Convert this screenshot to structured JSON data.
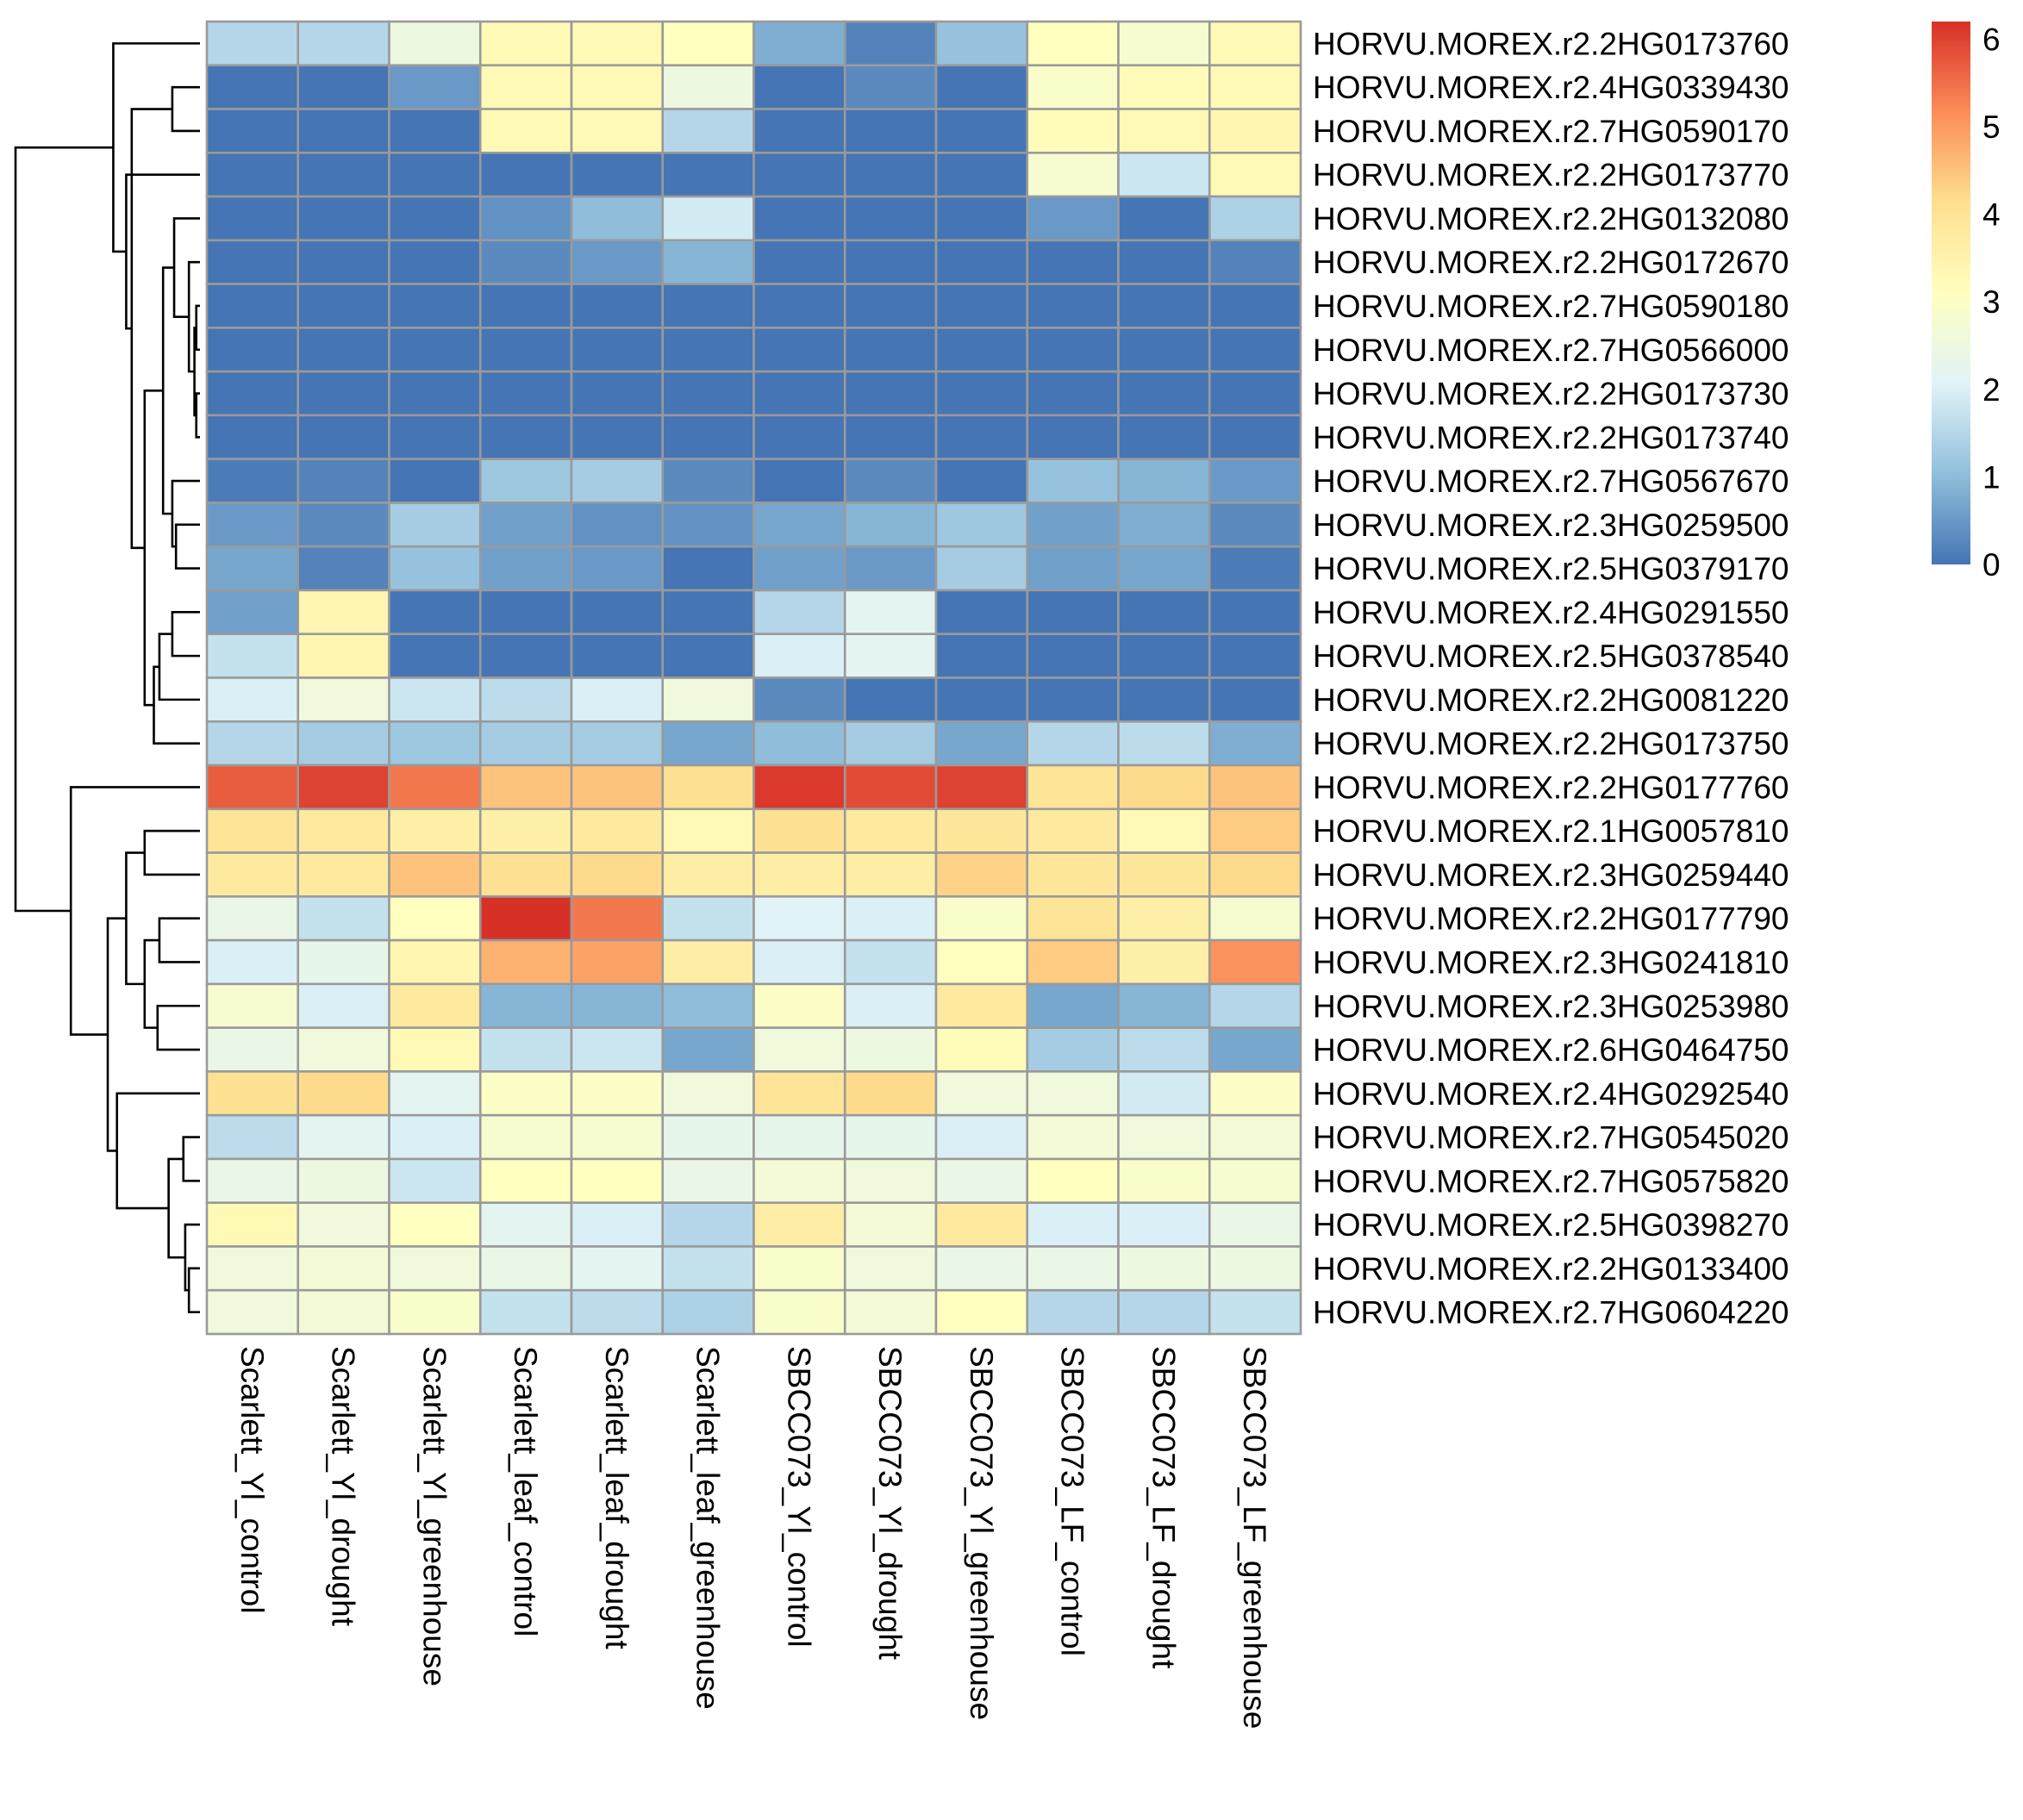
{
  "chart_data": {
    "type": "heatmap",
    "title": "",
    "xlabel": "",
    "ylabel": "",
    "columns": [
      "Scarlett_Yl_control",
      "Scarlett_Yl_drought",
      "Scarlett_Yl_greenhouse",
      "Scarlett_leaf_control",
      "Scarlett_leaf_drought",
      "Scarlett_leaf_greenhouse",
      "SBCC073_Yl_control",
      "SBCC073_Yl_drought",
      "SBCC073_Yl_greenhouse",
      "SBCC073_LF_control",
      "SBCC073_LF_drought",
      "SBCC073_LF_greenhouse"
    ],
    "rows": [
      "HORVU.MOREX.r2.2HG0173760",
      "HORVU.MOREX.r2.4HG0339430",
      "HORVU.MOREX.r2.7HG0590170",
      "HORVU.MOREX.r2.2HG0173770",
      "HORVU.MOREX.r2.2HG0132080",
      "HORVU.MOREX.r2.2HG0172670",
      "HORVU.MOREX.r2.7HG0590180",
      "HORVU.MOREX.r2.7HG0566000",
      "HORVU.MOREX.r2.2HG0173730",
      "HORVU.MOREX.r2.2HG0173740",
      "HORVU.MOREX.r2.7HG0567670",
      "HORVU.MOREX.r2.3HG0259500",
      "HORVU.MOREX.r2.5HG0379170",
      "HORVU.MOREX.r2.4HG0291550",
      "HORVU.MOREX.r2.5HG0378540",
      "HORVU.MOREX.r2.2HG0081220",
      "HORVU.MOREX.r2.2HG0173750",
      "HORVU.MOREX.r2.2HG0177760",
      "HORVU.MOREX.r2.1HG0057810",
      "HORVU.MOREX.r2.3HG0259440",
      "HORVU.MOREX.r2.2HG0177790",
      "HORVU.MOREX.r2.3HG0241810",
      "HORVU.MOREX.r2.3HG0253980",
      "HORVU.MOREX.r2.6HG0464750",
      "HORVU.MOREX.r2.4HG0292540",
      "HORVU.MOREX.r2.7HG0545020",
      "HORVU.MOREX.r2.7HG0575820",
      "HORVU.MOREX.r2.5HG0398270",
      "HORVU.MOREX.r2.2HG0133400",
      "HORVU.MOREX.r2.7HG0604220"
    ],
    "values": [
      [
        1.5,
        1.5,
        2.5,
        3.3,
        3.3,
        3.1,
        0.8,
        0.2,
        1.1,
        3.1,
        2.8,
        3.3
      ],
      [
        0.0,
        0.0,
        0.5,
        3.3,
        3.3,
        2.5,
        0.0,
        0.3,
        0.0,
        2.9,
        3.2,
        3.3
      ],
      [
        0.0,
        0.0,
        0.0,
        3.3,
        3.3,
        1.5,
        0.0,
        0.0,
        0.0,
        3.2,
        3.3,
        3.4
      ],
      [
        0.0,
        0.0,
        0.0,
        0.0,
        0.0,
        0.0,
        0.0,
        0.0,
        0.0,
        2.8,
        1.8,
        3.3
      ],
      [
        0.0,
        0.0,
        0.0,
        0.4,
        1.0,
        1.9,
        0.0,
        0.0,
        0.0,
        0.5,
        0.0,
        1.4
      ],
      [
        0.0,
        0.0,
        0.0,
        0.3,
        0.5,
        0.9,
        0.0,
        0.0,
        0.0,
        0.0,
        0.0,
        0.2
      ],
      [
        0.0,
        0.0,
        0.0,
        0.0,
        0.0,
        0.0,
        0.0,
        0.0,
        0.0,
        0.0,
        0.0,
        0.0
      ],
      [
        0.0,
        0.0,
        0.0,
        0.0,
        0.0,
        0.0,
        0.0,
        0.0,
        0.0,
        0.0,
        0.0,
        0.0
      ],
      [
        0.0,
        0.0,
        0.0,
        0.0,
        0.0,
        0.0,
        0.0,
        0.0,
        0.0,
        0.0,
        0.0,
        0.0
      ],
      [
        0.0,
        0.0,
        0.0,
        0.0,
        0.0,
        0.0,
        0.0,
        0.0,
        0.0,
        0.0,
        0.0,
        0.0
      ],
      [
        0.1,
        0.2,
        0.0,
        1.2,
        1.3,
        0.3,
        0.0,
        0.3,
        0.0,
        1.1,
        0.9,
        0.5
      ],
      [
        0.5,
        0.3,
        1.3,
        0.6,
        0.4,
        0.4,
        0.7,
        0.9,
        1.2,
        0.6,
        0.8,
        0.3
      ],
      [
        0.7,
        0.2,
        1.1,
        0.6,
        0.5,
        0.0,
        0.6,
        0.5,
        1.3,
        0.6,
        0.7,
        0.1
      ],
      [
        0.6,
        3.4,
        0.0,
        0.0,
        0.0,
        0.0,
        1.5,
        2.2,
        0.0,
        0.0,
        0.0,
        0.0
      ],
      [
        1.7,
        3.4,
        0.0,
        0.0,
        0.0,
        0.0,
        2.0,
        2.2,
        0.0,
        0.0,
        0.0,
        0.0
      ],
      [
        2.0,
        2.6,
        1.8,
        1.6,
        2.0,
        2.6,
        0.3,
        0.0,
        0.0,
        0.0,
        0.0,
        0.0
      ],
      [
        1.5,
        1.3,
        1.2,
        1.3,
        1.3,
        0.7,
        1.0,
        1.3,
        0.7,
        1.5,
        1.6,
        0.8
      ],
      [
        5.7,
        6.0,
        5.4,
        4.5,
        4.5,
        4.1,
        6.1,
        5.9,
        6.0,
        4.0,
        4.2,
        4.5
      ],
      [
        4.0,
        3.8,
        3.6,
        3.6,
        3.8,
        3.3,
        4.1,
        3.8,
        3.9,
        3.8,
        3.3,
        4.4
      ],
      [
        3.8,
        3.8,
        4.5,
        4.1,
        4.2,
        3.7,
        3.7,
        3.7,
        4.3,
        3.9,
        3.9,
        4.2
      ],
      [
        2.4,
        1.7,
        3.1,
        6.2,
        5.4,
        1.7,
        2.1,
        2.0,
        2.9,
        4.0,
        3.6,
        2.8
      ],
      [
        2.0,
        2.3,
        3.4,
        4.7,
        4.9,
        3.7,
        2.0,
        1.7,
        3.1,
        4.4,
        3.6,
        5.1
      ],
      [
        2.8,
        2.0,
        3.8,
        0.9,
        0.9,
        1.0,
        3.0,
        2.0,
        3.8,
        0.7,
        0.9,
        1.5
      ],
      [
        2.4,
        2.6,
        3.3,
        1.7,
        1.8,
        0.7,
        2.6,
        2.5,
        3.2,
        1.3,
        1.6,
        0.7
      ],
      [
        4.1,
        4.2,
        2.2,
        3.0,
        3.0,
        2.6,
        4.0,
        4.2,
        2.6,
        2.6,
        1.9,
        3.0
      ],
      [
        1.6,
        2.2,
        2.0,
        2.8,
        2.8,
        2.3,
        2.3,
        2.3,
        2.0,
        2.7,
        2.6,
        2.7
      ],
      [
        2.4,
        2.5,
        1.8,
        3.1,
        3.1,
        2.4,
        2.7,
        2.6,
        2.4,
        3.1,
        2.9,
        2.8
      ],
      [
        3.3,
        2.6,
        3.1,
        2.2,
        2.0,
        1.5,
        3.7,
        2.7,
        3.8,
        2.0,
        2.0,
        2.4
      ],
      [
        2.6,
        2.7,
        2.6,
        2.4,
        2.2,
        1.7,
        2.9,
        2.6,
        2.4,
        2.4,
        2.5,
        2.5
      ],
      [
        2.6,
        2.7,
        2.9,
        1.7,
        1.6,
        1.4,
        2.9,
        2.7,
        3.1,
        1.5,
        1.5,
        1.7
      ]
    ],
    "legend": {
      "min": 0,
      "max": 6.2,
      "ticks": [
        "0",
        "1",
        "2",
        "3",
        "4",
        "5",
        "6"
      ],
      "colors": [
        "#4575b4",
        "#91bfdb",
        "#e0f3f8",
        "#ffffbf",
        "#fee090",
        "#fc8d59",
        "#d73027"
      ]
    },
    "row_dendrogram": [
      {
        "a": [
          2,
          3
        ],
        "h": 0.15
      },
      {
        "a": [
          7,
          8
        ],
        "h": 0.02
      },
      {
        "a": [
          9,
          10
        ],
        "h": 0.02
      },
      {
        "a": [
          -2,
          -3
        ],
        "h": 0.03
      },
      {
        "a": [
          6,
          -4
        ],
        "h": 0.06
      },
      {
        "a": [
          5,
          -5
        ],
        "h": 0.14
      },
      {
        "a": [
          14,
          15
        ],
        "h": 0.15
      },
      {
        "a": [
          12,
          13
        ],
        "h": 0.13
      },
      {
        "a": [
          11,
          -8
        ],
        "h": 0.15
      },
      {
        "a": [
          -6,
          -9
        ],
        "h": 0.2
      },
      {
        "a": [
          -7,
          16
        ],
        "h": 0.22
      },
      {
        "a": [
          -11,
          17
        ],
        "h": 0.25
      },
      {
        "a": [
          -10,
          -12
        ],
        "h": 0.3
      },
      {
        "a": [
          -1,
          -13
        ],
        "h": 0.37
      },
      {
        "a": [
          4,
          -14
        ],
        "h": 0.4
      },
      {
        "a": [
          1,
          -15
        ],
        "h": 0.47
      },
      {
        "a": [
          19,
          20
        ],
        "h": 0.3
      },
      {
        "a": [
          21,
          22
        ],
        "h": 0.22
      },
      {
        "a": [
          23,
          24
        ],
        "h": 0.23
      },
      {
        "a": [
          -18,
          -19
        ],
        "h": 0.3
      },
      {
        "a": [
          -17,
          -20
        ],
        "h": 0.4
      },
      {
        "a": [
          29,
          30
        ],
        "h": 0.06
      },
      {
        "a": [
          28,
          -22
        ],
        "h": 0.08
      },
      {
        "a": [
          26,
          27
        ],
        "h": 0.09
      },
      {
        "a": [
          -24,
          -23
        ],
        "h": 0.17
      },
      {
        "a": [
          25,
          -25
        ],
        "h": 0.45
      },
      {
        "a": [
          -21,
          -26
        ],
        "h": 0.5
      },
      {
        "a": [
          18,
          -27
        ],
        "h": 0.7
      },
      {
        "a": [
          -16,
          -28
        ],
        "h": 1.0
      }
    ]
  }
}
